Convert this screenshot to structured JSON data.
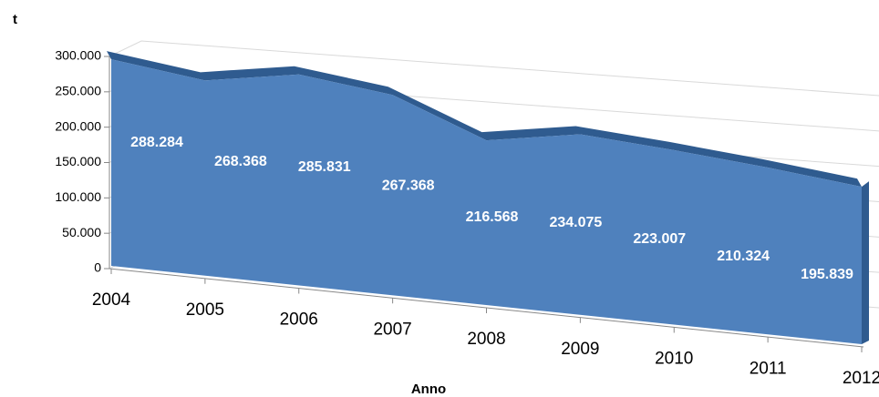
{
  "chart_data": {
    "type": "area3d",
    "y_label": "t",
    "x_label": "Anno",
    "categories": [
      "2004",
      "2005",
      "2006",
      "2007",
      "2008",
      "2009",
      "2010",
      "2011",
      "2012"
    ],
    "series": [
      {
        "name": "t",
        "color": "#4f81bd",
        "values": [
          288284,
          268368,
          285831,
          267368,
          216568,
          234075,
          223007,
          210324,
          195839
        ],
        "value_labels": [
          "288.284",
          "268.368",
          "285.831",
          "267.368",
          "216.568",
          "234.075",
          "223.007",
          "210.324",
          "195.839"
        ]
      }
    ],
    "ylim": [
      0,
      300000
    ],
    "yticks": [
      0,
      {
        "value": 50000,
        "label": "50.000"
      },
      {
        "value": 100000,
        "label": "100.000"
      },
      {
        "value": 150000,
        "label": "150.000"
      },
      {
        "value": 200000,
        "label": "200.000"
      },
      {
        "value": 250000,
        "label": "250.000"
      },
      {
        "value": 300000,
        "label": "300.000"
      }
    ],
    "grid": true
  }
}
